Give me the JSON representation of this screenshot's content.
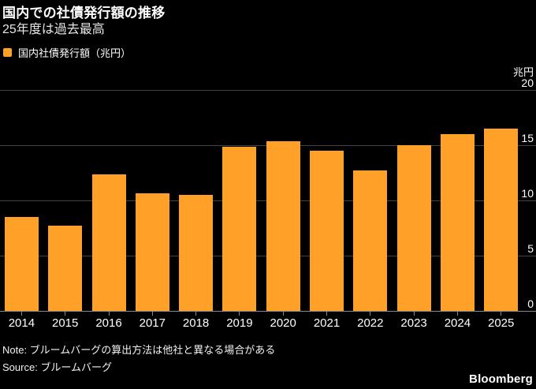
{
  "header": {
    "title": "国内での社債発行額の推移",
    "subtitle": "25年度は過去最高"
  },
  "legend": {
    "label": "国内社債発行額（兆円）",
    "swatch_color": "#FFA028"
  },
  "chart_data": {
    "type": "bar",
    "title": "国内での社債発行額の推移",
    "subtitle": "25年度は過去最高",
    "series_name": "国内社債発行額（兆円）",
    "categories": [
      "2014",
      "2015",
      "2016",
      "2017",
      "2018",
      "2019",
      "2020",
      "2021",
      "2022",
      "2023",
      "2024",
      "2025"
    ],
    "values": [
      8.6,
      7.8,
      12.4,
      10.7,
      10.6,
      14.9,
      15.4,
      14.6,
      12.8,
      15.1,
      16.1,
      16.6
    ],
    "unit": "兆円",
    "ylabel": "兆円",
    "xlabel": "",
    "ylim": [
      0,
      20
    ],
    "yticks": [
      0,
      5,
      10,
      15,
      20
    ],
    "grid": "horizontal",
    "legend_position": "top-left",
    "bar_color": "#FFA028",
    "background_color": "#000000",
    "gridline_color": "#434343",
    "axisline_color": "#8A8A8A"
  },
  "footer": {
    "note": "Note: ブルームバーグの算出方法は他社と異なる場合がある",
    "source": "Source: ブルームバーグ",
    "brand": "Bloomberg"
  }
}
